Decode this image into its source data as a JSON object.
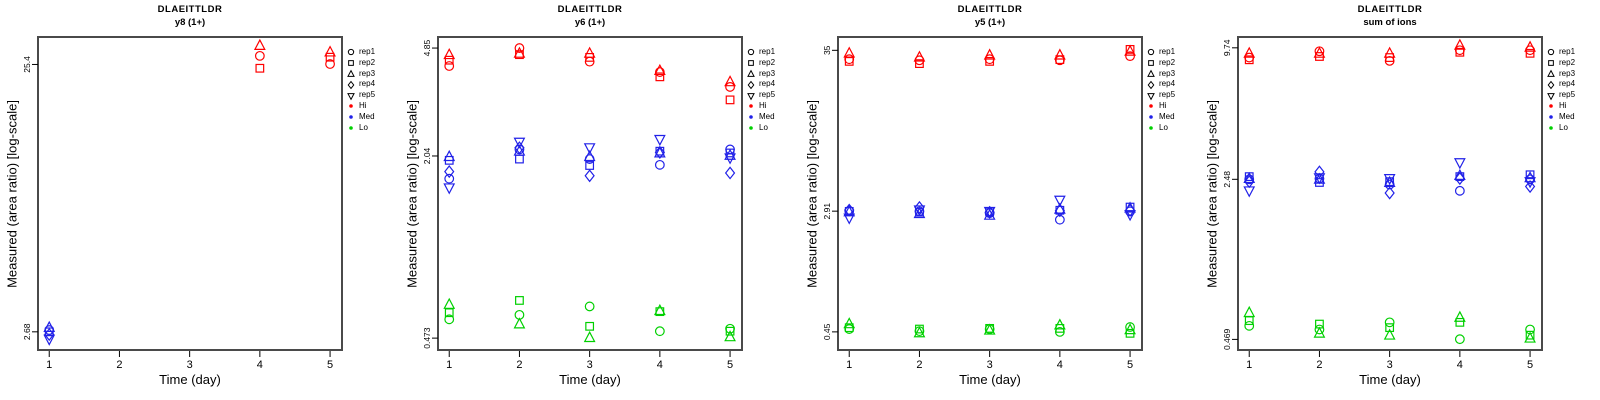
{
  "colors": {
    "Hi": "#ff0000",
    "Med": "#2121e8",
    "Lo": "#00d000",
    "box": "#4a4a4a",
    "text": "#000000"
  },
  "symbols": {
    "rep1": "circle",
    "rep2": "square",
    "rep3": "triangle-up",
    "rep4": "diamond",
    "rep5": "triangle-down"
  },
  "legend": {
    "items": [
      {
        "label": "rep1",
        "type": "rep",
        "symbol": "circle"
      },
      {
        "label": "rep2",
        "type": "rep",
        "symbol": "square"
      },
      {
        "label": "rep3",
        "type": "rep",
        "symbol": "triangle-up"
      },
      {
        "label": "rep4",
        "type": "rep",
        "symbol": "diamond"
      },
      {
        "label": "rep5",
        "type": "rep",
        "symbol": "triangle-down"
      },
      {
        "label": "Hi",
        "type": "level",
        "level": "Hi"
      },
      {
        "label": "Med",
        "type": "level",
        "level": "Med"
      },
      {
        "label": "Lo",
        "type": "level",
        "level": "Lo"
      }
    ]
  },
  "chart_data": [
    {
      "type": "scatter",
      "title": "DLAEITTLDR",
      "subtitle": "y8 (1+)",
      "xlabel": "Time (day)",
      "ylabel": "Measured (area ratio) [log-scale]",
      "x_ticks": [
        1,
        2,
        3,
        4,
        5
      ],
      "xlim": [
        0.84,
        5.17
      ],
      "y_scale": "log",
      "y_ticks": [
        2.68,
        25.4
      ],
      "ylim": [
        2.3,
        32
      ],
      "points_format": [
        "day",
        "rep",
        "level",
        "value"
      ],
      "points": [
        [
          1,
          "rep1",
          "Med",
          2.72
        ],
        [
          1,
          "rep2",
          "Med",
          2.68
        ],
        [
          1,
          "rep3",
          "Med",
          2.78
        ],
        [
          1,
          "rep4",
          "Med",
          2.62
        ],
        [
          1,
          "rep5",
          "Med",
          2.52
        ],
        [
          4,
          "rep1",
          "Hi",
          27.3
        ],
        [
          4,
          "rep2",
          "Hi",
          24.6
        ],
        [
          4,
          "rep3",
          "Hi",
          29.8
        ],
        [
          5,
          "rep1",
          "Hi",
          25.5
        ],
        [
          5,
          "rep2",
          "Hi",
          27.0
        ],
        [
          5,
          "rep3",
          "Hi",
          28.2
        ]
      ]
    },
    {
      "type": "scatter",
      "title": "DLAEITTLDR",
      "subtitle": "y6 (1+)",
      "xlabel": "Time (day)",
      "ylabel": "Measured (area ratio) [log-scale]",
      "x_ticks": [
        1,
        2,
        3,
        4,
        5
      ],
      "xlim": [
        0.84,
        5.17
      ],
      "y_scale": "log",
      "y_ticks": [
        0.473,
        2.04,
        4.85
      ],
      "ylim": [
        0.43,
        5.3
      ],
      "points_format": [
        "day",
        "rep",
        "level",
        "value"
      ],
      "points": [
        [
          1,
          "rep1",
          "Hi",
          4.2
        ],
        [
          1,
          "rep2",
          "Hi",
          4.4
        ],
        [
          1,
          "rep3",
          "Hi",
          4.6
        ],
        [
          2,
          "rep1",
          "Hi",
          4.85
        ],
        [
          2,
          "rep2",
          "Hi",
          4.6
        ],
        [
          2,
          "rep3",
          "Hi",
          4.65
        ],
        [
          3,
          "rep1",
          "Hi",
          4.35
        ],
        [
          3,
          "rep2",
          "Hi",
          4.5
        ],
        [
          3,
          "rep3",
          "Hi",
          4.65
        ],
        [
          4,
          "rep1",
          "Hi",
          4.0
        ],
        [
          4,
          "rep2",
          "Hi",
          3.85
        ],
        [
          4,
          "rep3",
          "Hi",
          4.05
        ],
        [
          5,
          "rep1",
          "Hi",
          3.55
        ],
        [
          5,
          "rep2",
          "Hi",
          3.2
        ],
        [
          5,
          "rep3",
          "Hi",
          3.7
        ],
        [
          1,
          "rep1",
          "Med",
          1.7
        ],
        [
          1,
          "rep2",
          "Med",
          1.97
        ],
        [
          1,
          "rep3",
          "Med",
          2.03
        ],
        [
          1,
          "rep4",
          "Med",
          1.8
        ],
        [
          1,
          "rep5",
          "Med",
          1.58
        ],
        [
          2,
          "rep1",
          "Med",
          2.15
        ],
        [
          2,
          "rep2",
          "Med",
          1.99
        ],
        [
          2,
          "rep3",
          "Med",
          2.12
        ],
        [
          2,
          "rep4",
          "Med",
          2.18
        ],
        [
          2,
          "rep5",
          "Med",
          2.28
        ],
        [
          3,
          "rep1",
          "Med",
          1.99
        ],
        [
          3,
          "rep2",
          "Med",
          1.89
        ],
        [
          3,
          "rep3",
          "Med",
          2.03
        ],
        [
          3,
          "rep4",
          "Med",
          1.74
        ],
        [
          3,
          "rep5",
          "Med",
          2.18
        ],
        [
          4,
          "rep1",
          "Med",
          1.9
        ],
        [
          4,
          "rep2",
          "Med",
          2.12
        ],
        [
          4,
          "rep3",
          "Med",
          2.09
        ],
        [
          4,
          "rep4",
          "Med",
          2.1
        ],
        [
          4,
          "rep5",
          "Med",
          2.33
        ],
        [
          5,
          "rep1",
          "Med",
          2.15
        ],
        [
          5,
          "rep2",
          "Med",
          2.09
        ],
        [
          5,
          "rep3",
          "Med",
          2.05
        ],
        [
          5,
          "rep4",
          "Med",
          1.78
        ],
        [
          5,
          "rep5",
          "Med",
          2.01
        ],
        [
          1,
          "rep1",
          "Lo",
          0.55
        ],
        [
          1,
          "rep2",
          "Lo",
          0.58
        ],
        [
          1,
          "rep3",
          "Lo",
          0.62
        ],
        [
          2,
          "rep1",
          "Lo",
          0.57
        ],
        [
          2,
          "rep2",
          "Lo",
          0.64
        ],
        [
          2,
          "rep3",
          "Lo",
          0.53
        ],
        [
          3,
          "rep1",
          "Lo",
          0.61
        ],
        [
          3,
          "rep2",
          "Lo",
          0.52
        ],
        [
          3,
          "rep3",
          "Lo",
          0.475
        ],
        [
          4,
          "rep1",
          "Lo",
          0.5
        ],
        [
          4,
          "rep2",
          "Lo",
          0.585
        ],
        [
          4,
          "rep3",
          "Lo",
          0.59
        ],
        [
          5,
          "rep1",
          "Lo",
          0.51
        ],
        [
          5,
          "rep2",
          "Lo",
          0.5
        ],
        [
          5,
          "rep3",
          "Lo",
          0.478
        ]
      ]
    },
    {
      "type": "scatter",
      "title": "DLAEITTLDR",
      "subtitle": "y5 (1+)",
      "xlabel": "Time (day)",
      "ylabel": "Measured (area ratio) [log-scale]",
      "x_ticks": [
        1,
        2,
        3,
        4,
        5
      ],
      "xlim": [
        0.84,
        5.17
      ],
      "y_scale": "log",
      "y_ticks": [
        0.45,
        2.91,
        35
      ],
      "ylim": [
        0.34,
        43
      ],
      "points_format": [
        "day",
        "rep",
        "level",
        "value"
      ],
      "points": [
        [
          1,
          "rep1",
          "Hi",
          30.5
        ],
        [
          1,
          "rep2",
          "Hi",
          29.5
        ],
        [
          1,
          "rep3",
          "Hi",
          33.5
        ],
        [
          2,
          "rep1",
          "Hi",
          30
        ],
        [
          2,
          "rep2",
          "Hi",
          28.5
        ],
        [
          2,
          "rep3",
          "Hi",
          31.5
        ],
        [
          3,
          "rep1",
          "Hi",
          30.5
        ],
        [
          3,
          "rep2",
          "Hi",
          29.5
        ],
        [
          3,
          "rep3",
          "Hi",
          32.5
        ],
        [
          4,
          "rep1",
          "Hi",
          30
        ],
        [
          4,
          "rep2",
          "Hi",
          30.3
        ],
        [
          4,
          "rep3",
          "Hi",
          32.5
        ],
        [
          5,
          "rep1",
          "Hi",
          32
        ],
        [
          5,
          "rep2",
          "Hi",
          35.5
        ],
        [
          5,
          "rep3",
          "Hi",
          34.5
        ],
        [
          1,
          "rep1",
          "Med",
          2.92
        ],
        [
          1,
          "rep2",
          "Med",
          2.9
        ],
        [
          1,
          "rep3",
          "Med",
          2.88
        ],
        [
          1,
          "rep4",
          "Med",
          2.96
        ],
        [
          1,
          "rep5",
          "Med",
          2.62
        ],
        [
          2,
          "rep1",
          "Med",
          2.9
        ],
        [
          2,
          "rep2",
          "Med",
          2.86
        ],
        [
          2,
          "rep3",
          "Med",
          2.8
        ],
        [
          2,
          "rep4",
          "Med",
          3.08
        ],
        [
          2,
          "rep5",
          "Med",
          2.97
        ],
        [
          3,
          "rep1",
          "Med",
          2.82
        ],
        [
          3,
          "rep2",
          "Med",
          2.88
        ],
        [
          3,
          "rep3",
          "Med",
          2.73
        ],
        [
          3,
          "rep4",
          "Med",
          2.86
        ],
        [
          3,
          "rep5",
          "Med",
          2.9
        ],
        [
          4,
          "rep1",
          "Med",
          2.55
        ],
        [
          4,
          "rep2",
          "Med",
          2.95
        ],
        [
          4,
          "rep3",
          "Med",
          3.0
        ],
        [
          4,
          "rep4",
          "Med",
          2.93
        ],
        [
          4,
          "rep5",
          "Med",
          3.45
        ],
        [
          5,
          "rep1",
          "Med",
          2.9
        ],
        [
          5,
          "rep2",
          "Med",
          3.1
        ],
        [
          5,
          "rep3",
          "Med",
          3.05
        ],
        [
          5,
          "rep4",
          "Med",
          2.95
        ],
        [
          5,
          "rep5",
          "Med",
          2.76
        ],
        [
          1,
          "rep1",
          "Lo",
          0.47
        ],
        [
          1,
          "rep2",
          "Lo",
          0.48
        ],
        [
          1,
          "rep3",
          "Lo",
          0.51
        ],
        [
          2,
          "rep1",
          "Lo",
          0.455
        ],
        [
          2,
          "rep2",
          "Lo",
          0.47
        ],
        [
          2,
          "rep3",
          "Lo",
          0.443
        ],
        [
          3,
          "rep1",
          "Lo",
          0.47
        ],
        [
          3,
          "rep2",
          "Lo",
          0.475
        ],
        [
          3,
          "rep3",
          "Lo",
          0.462
        ],
        [
          4,
          "rep1",
          "Lo",
          0.45
        ],
        [
          4,
          "rep2",
          "Lo",
          0.475
        ],
        [
          4,
          "rep3",
          "Lo",
          0.5
        ],
        [
          5,
          "rep1",
          "Lo",
          0.485
        ],
        [
          5,
          "rep2",
          "Lo",
          0.44
        ],
        [
          5,
          "rep3",
          "Lo",
          0.465
        ]
      ]
    },
    {
      "type": "scatter",
      "title": "DLAEITTLDR",
      "subtitle": "sum of ions",
      "xlabel": "Time (day)",
      "ylabel": "Measured (area ratio) [log-scale]",
      "x_ticks": [
        1,
        2,
        3,
        4,
        5
      ],
      "xlim": [
        0.84,
        5.17
      ],
      "y_scale": "log",
      "y_ticks": [
        0.469,
        2.48,
        9.74
      ],
      "ylim": [
        0.42,
        10.9
      ],
      "points_format": [
        "day",
        "rep",
        "level",
        "value"
      ],
      "points": [
        [
          1,
          "rep1",
          "Hi",
          8.8
        ],
        [
          1,
          "rep2",
          "Hi",
          8.6
        ],
        [
          1,
          "rep3",
          "Hi",
          9.2
        ],
        [
          2,
          "rep1",
          "Hi",
          9.4
        ],
        [
          2,
          "rep2",
          "Hi",
          8.9
        ],
        [
          2,
          "rep3",
          "Hi",
          9.2
        ],
        [
          3,
          "rep1",
          "Hi",
          8.5
        ],
        [
          3,
          "rep2",
          "Hi",
          8.8
        ],
        [
          3,
          "rep3",
          "Hi",
          9.2
        ],
        [
          4,
          "rep1",
          "Hi",
          9.5
        ],
        [
          4,
          "rep2",
          "Hi",
          9.3
        ],
        [
          4,
          "rep3",
          "Hi",
          10.0
        ],
        [
          5,
          "rep1",
          "Hi",
          9.5
        ],
        [
          5,
          "rep2",
          "Hi",
          9.2
        ],
        [
          5,
          "rep3",
          "Hi",
          9.8
        ],
        [
          1,
          "rep1",
          "Med",
          2.48
        ],
        [
          1,
          "rep2",
          "Med",
          2.55
        ],
        [
          1,
          "rep3",
          "Med",
          2.5
        ],
        [
          1,
          "rep4",
          "Med",
          2.42
        ],
        [
          1,
          "rep5",
          "Med",
          2.2
        ],
        [
          2,
          "rep1",
          "Med",
          2.5
        ],
        [
          2,
          "rep2",
          "Med",
          2.4
        ],
        [
          2,
          "rep3",
          "Med",
          2.48
        ],
        [
          2,
          "rep4",
          "Med",
          2.68
        ],
        [
          2,
          "rep5",
          "Med",
          2.52
        ],
        [
          3,
          "rep1",
          "Med",
          2.35
        ],
        [
          3,
          "rep2",
          "Med",
          2.42
        ],
        [
          3,
          "rep3",
          "Med",
          2.4
        ],
        [
          3,
          "rep4",
          "Med",
          2.15
        ],
        [
          3,
          "rep5",
          "Med",
          2.5
        ],
        [
          4,
          "rep1",
          "Med",
          2.2
        ],
        [
          4,
          "rep2",
          "Med",
          2.55
        ],
        [
          4,
          "rep3",
          "Med",
          2.58
        ],
        [
          4,
          "rep4",
          "Med",
          2.5
        ],
        [
          4,
          "rep5",
          "Med",
          2.95
        ],
        [
          5,
          "rep1",
          "Med",
          2.48
        ],
        [
          5,
          "rep2",
          "Med",
          2.6
        ],
        [
          5,
          "rep3",
          "Med",
          2.52
        ],
        [
          5,
          "rep4",
          "Med",
          2.3
        ],
        [
          5,
          "rep5",
          "Med",
          2.42
        ],
        [
          1,
          "rep1",
          "Lo",
          0.54
        ],
        [
          1,
          "rep2",
          "Lo",
          0.57
        ],
        [
          1,
          "rep3",
          "Lo",
          0.62
        ],
        [
          2,
          "rep1",
          "Lo",
          0.52
        ],
        [
          2,
          "rep2",
          "Lo",
          0.55
        ],
        [
          2,
          "rep3",
          "Lo",
          0.5
        ],
        [
          3,
          "rep1",
          "Lo",
          0.56
        ],
        [
          3,
          "rep2",
          "Lo",
          0.53
        ],
        [
          3,
          "rep3",
          "Lo",
          0.49
        ],
        [
          4,
          "rep1",
          "Lo",
          0.47
        ],
        [
          4,
          "rep2",
          "Lo",
          0.56
        ],
        [
          4,
          "rep3",
          "Lo",
          0.59
        ],
        [
          5,
          "rep1",
          "Lo",
          0.52
        ],
        [
          5,
          "rep2",
          "Lo",
          0.49
        ],
        [
          5,
          "rep3",
          "Lo",
          0.475
        ]
      ]
    }
  ]
}
